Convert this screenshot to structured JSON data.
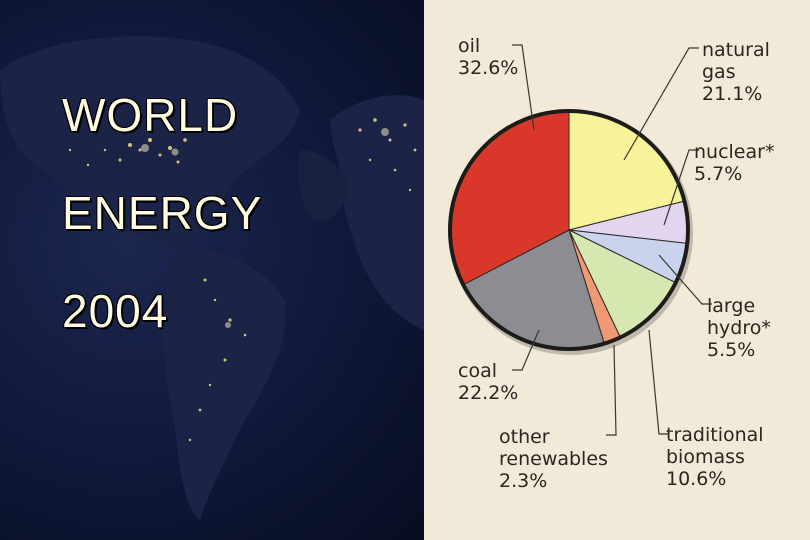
{
  "slide": {
    "title_line1": "WORLD",
    "title_line2": "ENERGY",
    "title_line3": "2004"
  },
  "chart_data": {
    "type": "pie",
    "title": "",
    "start_angle_deg": 0,
    "direction": "clockwise",
    "slices": [
      {
        "name": "natural gas",
        "value": 21.1,
        "label_lines": [
          "natural",
          "gas",
          "21.1%"
        ],
        "color": "#f7f39a"
      },
      {
        "name": "nuclear*",
        "value": 5.7,
        "label_lines": [
          "nuclear*",
          "5.7%"
        ],
        "color": "#e2d6ef"
      },
      {
        "name": "large hydro*",
        "value": 5.5,
        "label_lines": [
          "large",
          "hydro*",
          "5.5%"
        ],
        "color": "#c9d3ee"
      },
      {
        "name": "traditional biomass",
        "value": 10.6,
        "label_lines": [
          "traditional",
          "biomass",
          "10.6%"
        ],
        "color": "#d6e8b0"
      },
      {
        "name": "other renewables",
        "value": 2.3,
        "label_lines": [
          "other",
          "renewables",
          "2.3%"
        ],
        "color": "#f09a74"
      },
      {
        "name": "coal",
        "value": 22.2,
        "label_lines": [
          "coal",
          "22.2%"
        ],
        "color": "#8c8c92"
      },
      {
        "name": "oil",
        "value": 32.6,
        "label_lines": [
          "oil",
          "32.6%"
        ],
        "color": "#d8372a"
      }
    ]
  }
}
